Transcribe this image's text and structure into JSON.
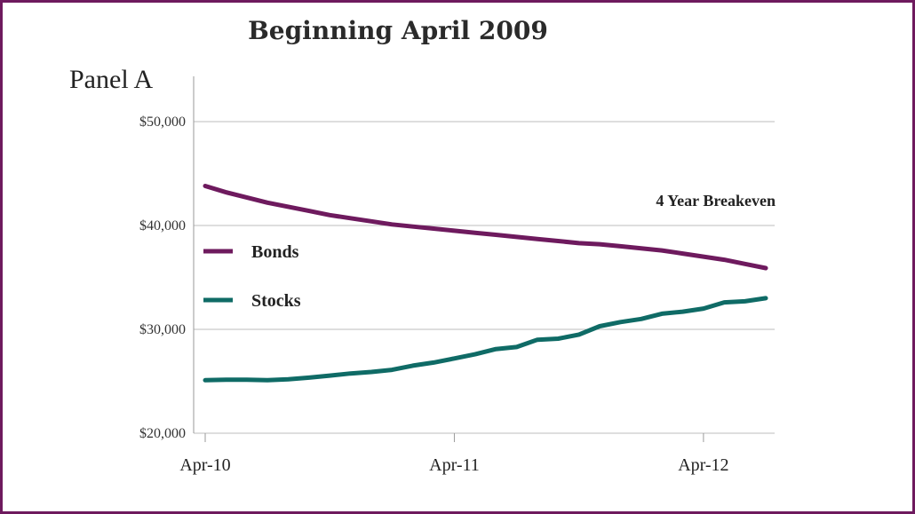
{
  "chart_data": {
    "type": "line",
    "title": "Beginning April 2009",
    "panel_label": "Panel A",
    "annotation": "4 Year Breakeven",
    "yticks": [
      "$20,000",
      "$30,000",
      "$40,000",
      "$50,000"
    ],
    "ytick_values": [
      20000,
      30000,
      40000,
      50000
    ],
    "ylim": [
      20000,
      54000
    ],
    "xticks": [
      "Apr-10",
      "Apr-11",
      "Apr-12"
    ],
    "xtick_positions": [
      0,
      12,
      24
    ],
    "xlim": [
      0,
      27
    ],
    "grid": true,
    "legend_position": "left",
    "series": [
      {
        "name": "Bonds",
        "color": "#6e1a5e",
        "x": [
          0,
          1,
          2,
          3,
          4,
          5,
          6,
          7,
          8,
          9,
          10,
          11,
          12,
          13,
          14,
          15,
          16,
          17,
          18,
          19,
          20,
          21,
          22,
          23,
          24,
          25,
          26,
          27
        ],
        "values": [
          43800,
          43200,
          42700,
          42200,
          41800,
          41400,
          41000,
          40700,
          40400,
          40100,
          39900,
          39700,
          39500,
          39300,
          39100,
          38900,
          38700,
          38500,
          38300,
          38200,
          38000,
          37800,
          37600,
          37300,
          37000,
          36700,
          36300,
          35900
        ]
      },
      {
        "name": "Stocks",
        "color": "#0f6b66",
        "x": [
          0,
          1,
          2,
          3,
          4,
          5,
          6,
          7,
          8,
          9,
          10,
          11,
          12,
          13,
          14,
          15,
          16,
          17,
          18,
          19,
          20,
          21,
          22,
          23,
          24,
          25,
          26,
          27
        ],
        "values": [
          25100,
          25150,
          25150,
          25100,
          25200,
          25350,
          25550,
          25750,
          25900,
          26100,
          26500,
          26800,
          27200,
          27600,
          28100,
          28300,
          29000,
          29100,
          29500,
          30300,
          30700,
          31000,
          31500,
          31700,
          32000,
          32600,
          32700,
          33000
        ]
      }
    ]
  }
}
